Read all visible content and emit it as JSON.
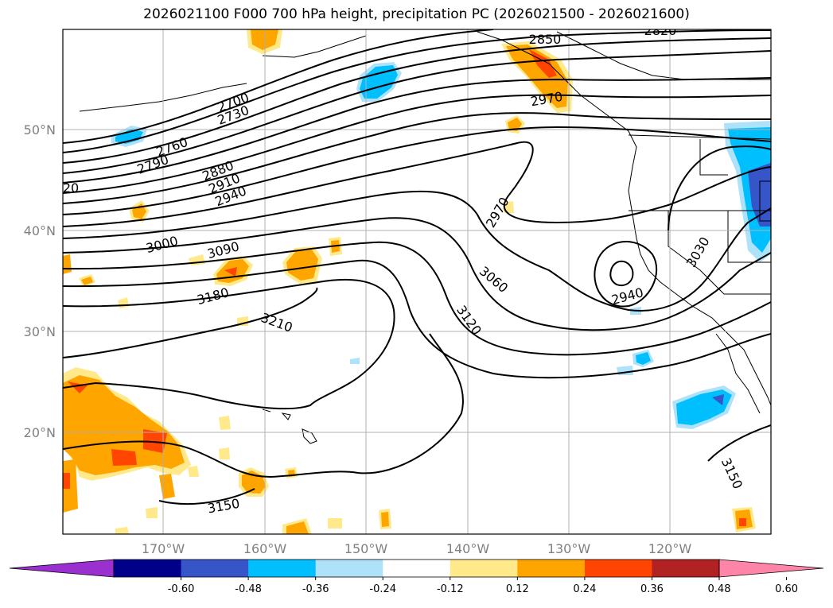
{
  "title": "2026021100 F000 700 hPa height, precipitation PC (2026021500 - 2026021600)",
  "lat_labels": [
    "50°N",
    "40°N",
    "30°N",
    "20°N"
  ],
  "lon_labels": [
    "170°W",
    "160°W",
    "150°W",
    "140°W",
    "130°W",
    "120°W"
  ],
  "contour_labels": [
    "2850",
    "2820",
    "2700",
    "2730",
    "2760",
    "2790",
    "2880",
    "2910",
    "2940",
    "2970",
    "3000",
    "3090",
    "3180",
    "3210",
    "3060",
    "3120",
    "2940",
    "3030",
    "3150",
    "3150",
    "20",
    "2970"
  ],
  "colorbar": {
    "colors": [
      "#9b30d0",
      "#00008b",
      "#3555c8",
      "#00bfff",
      "#aee2fb",
      "#ffffff",
      "#ffe98a",
      "#ffa500",
      "#ff4500",
      "#b22222",
      "#ff85a8"
    ],
    "ticks": [
      "-0.60",
      "-0.48",
      "-0.36",
      "-0.24",
      "-0.12",
      "0.12",
      "0.24",
      "0.36",
      "0.48",
      "0.60"
    ]
  },
  "fill_colors": {
    "pos1": "#ffe98a",
    "pos2": "#ffa500",
    "pos3": "#ff4500",
    "neg1": "#aee2fb",
    "neg2": "#00bfff",
    "neg3": "#3555c8"
  }
}
